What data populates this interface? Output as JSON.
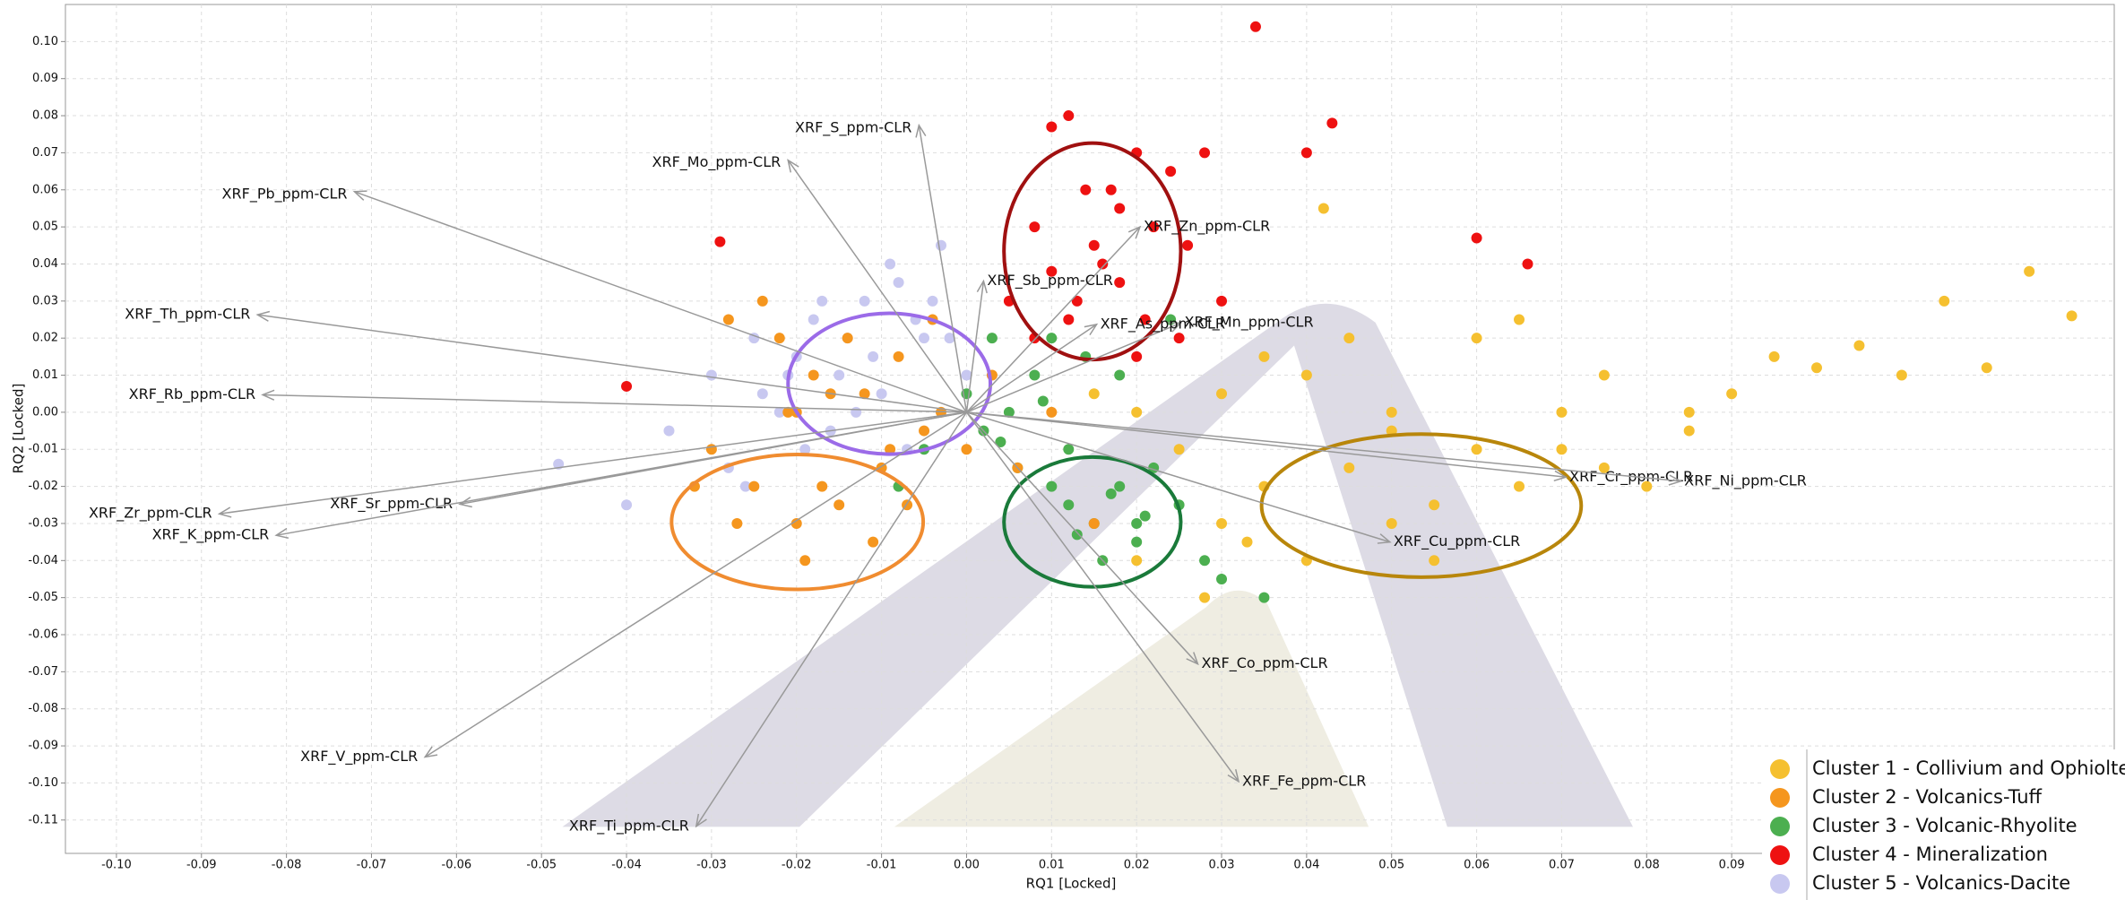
{
  "chart_data": {
    "type": "scatter",
    "x_label": "RQ1 [Locked]",
    "y_label": "RQ2 [Locked]",
    "xlim": [
      -0.106,
      0.135
    ],
    "ylim": [
      -0.119,
      0.11
    ],
    "xticks": [
      {
        "value": -0.1,
        "label": "-0.10"
      },
      -0.09,
      -0.08,
      -0.07,
      -0.06,
      -0.05,
      -0.04,
      -0.03,
      -0.02,
      -0.01,
      {
        "value": 0,
        "label": "0.00"
      },
      0.01,
      0.02,
      0.03,
      0.04,
      0.05,
      0.06,
      0.07,
      0.08,
      0.09
    ],
    "yticks": [
      {
        "value": 0.1,
        "label": "0.10"
      },
      0.09,
      0.08,
      0.07,
      0.06,
      0.05,
      0.04,
      0.03,
      0.02,
      0.01,
      {
        "value": 0,
        "label": "0.00"
      },
      -0.01,
      -0.02,
      -0.03,
      -0.04,
      -0.05,
      -0.06,
      -0.07,
      -0.08,
      -0.09,
      {
        "value": -0.1,
        "label": "-0.10"
      },
      -0.11
    ],
    "grid": true,
    "legend": "lower right",
    "series": [
      {
        "name": "Cluster 1 - Collivium and Ophiolte",
        "color": "#f5c030",
        "x": [
          0.02,
          0.025,
          0.03,
          0.035,
          0.04,
          0.045,
          0.05,
          0.055,
          0.06,
          0.065,
          0.07,
          0.075,
          0.08,
          0.085,
          0.09,
          0.095,
          0.1,
          0.105,
          0.11,
          0.115,
          0.12,
          0.125,
          0.13,
          0.03,
          0.04,
          0.05,
          0.06,
          0.07,
          0.045,
          0.035,
          0.055,
          0.028,
          0.065,
          0.075,
          0.085,
          0.015,
          0.02,
          0.033,
          0.042,
          0.05
        ],
        "y": [
          0.0,
          -0.01,
          0.005,
          -0.02,
          0.01,
          -0.015,
          0.0,
          -0.025,
          -0.01,
          -0.02,
          -0.01,
          -0.015,
          -0.02,
          -0.005,
          0.005,
          0.015,
          0.012,
          0.018,
          0.01,
          0.03,
          0.012,
          0.038,
          0.026,
          -0.03,
          -0.04,
          -0.03,
          0.02,
          0.0,
          0.02,
          0.015,
          -0.04,
          -0.05,
          0.025,
          0.01,
          0.0,
          0.005,
          -0.04,
          -0.035,
          0.055,
          -0.005
        ]
      },
      {
        "name": "Cluster 2 - Volcanics-Tuff",
        "color": "#f5961e",
        "x": [
          -0.03,
          -0.028,
          -0.025,
          -0.022,
          -0.02,
          -0.018,
          -0.015,
          -0.012,
          -0.01,
          -0.008,
          -0.005,
          -0.003,
          0.0,
          0.003,
          0.006,
          -0.027,
          -0.024,
          -0.021,
          -0.017,
          -0.014,
          -0.011,
          -0.007,
          -0.004,
          -0.032,
          -0.019,
          -0.016,
          -0.009,
          0.01,
          0.015,
          -0.02
        ],
        "y": [
          -0.01,
          0.025,
          -0.02,
          0.02,
          -0.03,
          0.01,
          -0.025,
          0.005,
          -0.015,
          0.015,
          -0.005,
          0.0,
          -0.01,
          0.01,
          -0.015,
          -0.03,
          0.03,
          0.0,
          -0.02,
          0.02,
          -0.035,
          -0.025,
          0.025,
          -0.02,
          -0.04,
          0.005,
          -0.01,
          0.0,
          -0.03,
          0.0
        ]
      },
      {
        "name": "Cluster 3 - Volcanic-Rhyolite",
        "color": "#4caf50",
        "x": [
          -0.005,
          0.0,
          0.002,
          0.005,
          0.008,
          0.01,
          0.012,
          0.015,
          0.018,
          0.02,
          0.022,
          0.025,
          0.028,
          0.01,
          0.014,
          0.016,
          0.02,
          0.012,
          0.006,
          0.003,
          -0.008,
          0.018,
          0.024,
          0.03,
          0.035,
          0.004,
          0.009,
          0.017,
          0.021,
          0.013
        ],
        "y": [
          -0.01,
          0.005,
          -0.005,
          0.0,
          0.01,
          -0.02,
          -0.025,
          -0.03,
          -0.02,
          -0.035,
          -0.015,
          -0.025,
          -0.04,
          0.02,
          0.015,
          -0.04,
          -0.03,
          -0.01,
          -0.015,
          0.02,
          -0.02,
          0.01,
          0.025,
          -0.045,
          -0.05,
          -0.008,
          0.003,
          -0.022,
          -0.028,
          -0.033
        ]
      },
      {
        "name": "Cluster 4 - Mineralization",
        "color": "#ee1111",
        "x": [
          0.005,
          0.008,
          0.01,
          0.012,
          0.014,
          0.016,
          0.018,
          0.02,
          0.022,
          0.024,
          0.026,
          0.028,
          0.03,
          0.012,
          0.015,
          0.018,
          0.021,
          0.01,
          0.013,
          0.034,
          0.04,
          0.043,
          0.06,
          0.066,
          -0.029,
          -0.04,
          0.02,
          0.025,
          0.017,
          0.008
        ],
        "y": [
          0.03,
          0.05,
          0.077,
          0.08,
          0.06,
          0.04,
          0.035,
          0.07,
          0.05,
          0.065,
          0.045,
          0.07,
          0.03,
          0.025,
          0.045,
          0.055,
          0.025,
          0.038,
          0.03,
          0.104,
          0.07,
          0.078,
          0.047,
          0.04,
          0.046,
          0.007,
          0.015,
          0.02,
          0.06,
          0.02
        ]
      },
      {
        "name": "Cluster 5 - Volcanics-Dacite",
        "color": "#c8c8f0",
        "x": [
          -0.04,
          -0.035,
          -0.03,
          -0.028,
          -0.025,
          -0.022,
          -0.02,
          -0.018,
          -0.015,
          -0.012,
          -0.01,
          -0.008,
          -0.005,
          -0.003,
          0.0,
          -0.024,
          -0.019,
          -0.014,
          -0.009,
          -0.004,
          -0.016,
          -0.011,
          -0.006,
          -0.026,
          -0.021,
          -0.013,
          -0.007,
          -0.002,
          -0.048,
          -0.017
        ],
        "y": [
          -0.025,
          -0.005,
          0.01,
          -0.015,
          0.02,
          0.0,
          0.015,
          0.025,
          0.01,
          0.03,
          0.005,
          0.035,
          0.02,
          0.045,
          0.01,
          0.005,
          -0.01,
          0.02,
          0.04,
          0.03,
          -0.005,
          0.015,
          0.025,
          -0.02,
          0.01,
          0.0,
          -0.01,
          0.02,
          -0.014,
          0.03
        ]
      }
    ],
    "vectors": [
      {
        "label": "XRF_S_ppm-CLR",
        "x": -0.0056,
        "y": 0.0774
      },
      {
        "label": "XRF_Mo_ppm-CLR",
        "x": -0.021,
        "y": 0.068
      },
      {
        "label": "XRF_Pb_ppm-CLR",
        "x": -0.072,
        "y": 0.0595
      },
      {
        "label": "XRF_Th_ppm-CLR",
        "x": -0.0834,
        "y": 0.0263
      },
      {
        "label": "XRF_Rb_ppm-CLR",
        "x": -0.0828,
        "y": 0.0047
      },
      {
        "label": "XRF_Zr_ppm-CLR",
        "x": -0.0879,
        "y": -0.0274
      },
      {
        "label": "XRF_Sr_ppm-CLR",
        "x": -0.0596,
        "y": -0.0248
      },
      {
        "label": "XRF_K_ppm-CLR",
        "x": -0.0812,
        "y": -0.0332
      },
      {
        "label": "XRF_V_ppm-CLR",
        "x": -0.0637,
        "y": -0.093
      },
      {
        "label": "XRF_Ti_ppm-CLR",
        "x": -0.0318,
        "y": -0.1117
      },
      {
        "label": "XRF_Fe_ppm-CLR",
        "x": 0.032,
        "y": -0.0996
      },
      {
        "label": "XRF_Co_ppm-CLR",
        "x": 0.0272,
        "y": -0.0679
      },
      {
        "label": "XRF_Cu_ppm-CLR",
        "x": 0.0498,
        "y": -0.035
      },
      {
        "label": "XRF_Cr_ppm-CLR",
        "x": 0.0705,
        "y": -0.0175
      },
      {
        "label": "XRF_Ni_ppm-CLR",
        "x": 0.084,
        "y": -0.0186
      },
      {
        "label": "XRF_Mn_ppm-CLR",
        "x": 0.0252,
        "y": 0.0241
      },
      {
        "label": "XRF_As_ppm-CLR",
        "x": 0.0153,
        "y": 0.0237
      },
      {
        "label": "XRF_Zn_ppm-CLR",
        "x": 0.0204,
        "y": 0.05
      },
      {
        "label": "XRF_Sb_ppm-CLR",
        "x": 0.002,
        "y": 0.0354
      }
    ],
    "ellipses": [
      {
        "cx": -0.0091,
        "cy": 0.0077,
        "rx": 0.0119,
        "ry": 0.019,
        "color": "#9b6be8"
      },
      {
        "cx": -0.0199,
        "cy": -0.0296,
        "rx": 0.0148,
        "ry": 0.0182,
        "color": "#f08c30"
      },
      {
        "cx": 0.0148,
        "cy": -0.0296,
        "rx": 0.0104,
        "ry": 0.0175,
        "color": "#1a7a3a"
      },
      {
        "cx": 0.0148,
        "cy": 0.0434,
        "rx": 0.0104,
        "ry": 0.0292,
        "color": "#a01010"
      },
      {
        "cx": 0.0535,
        "cy": -0.0252,
        "rx": 0.0188,
        "ry": 0.0193,
        "color": "#b8860b"
      }
    ]
  }
}
